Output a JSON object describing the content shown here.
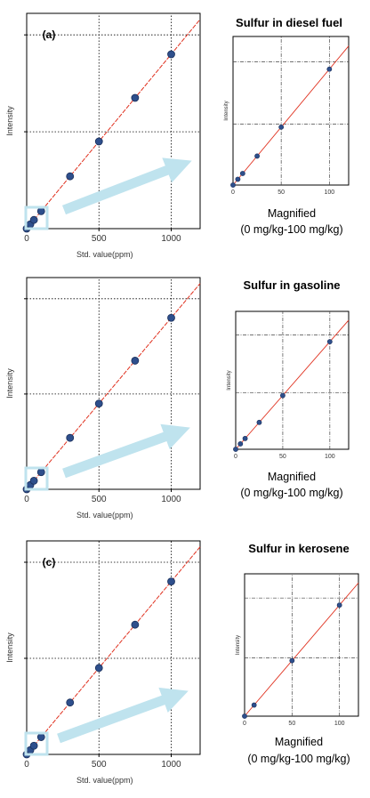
{
  "chart_data": [
    {
      "type": "scatter",
      "panel_label": "(a)",
      "title": "Sulfur in diesel fuel",
      "xlabel": "Std. value(ppm)",
      "ylabel": "Intensity",
      "x_ticks": [
        "0",
        "500",
        "1000"
      ],
      "xlim": [
        0,
        1200
      ],
      "points": [
        [
          0,
          0
        ],
        [
          10,
          0.01
        ],
        [
          25,
          0.025
        ],
        [
          50,
          0.05
        ],
        [
          100,
          0.1
        ],
        [
          300,
          0.3
        ],
        [
          500,
          0.5
        ],
        [
          750,
          0.75
        ],
        [
          1000,
          1.0
        ]
      ],
      "inset": {
        "x_ticks": [
          "0",
          "50",
          "100"
        ],
        "xlim": [
          0,
          120
        ],
        "ylabel": "Intensity",
        "points": [
          [
            0,
            0
          ],
          [
            5,
            0.005
          ],
          [
            10,
            0.01
          ],
          [
            25,
            0.025
          ],
          [
            50,
            0.05
          ],
          [
            100,
            0.1
          ]
        ],
        "caption_line1": "Magnified",
        "caption_line2": "(0 mg/kg-100 mg/kg)"
      }
    },
    {
      "type": "scatter",
      "panel_label": "",
      "title": "Sulfur in gasoline",
      "xlabel": "Std. value(ppm)",
      "ylabel": "Intensity",
      "x_ticks": [
        "0",
        "500",
        "1000"
      ],
      "xlim": [
        0,
        1200
      ],
      "points": [
        [
          0,
          0
        ],
        [
          10,
          0.01
        ],
        [
          25,
          0.025
        ],
        [
          50,
          0.05
        ],
        [
          100,
          0.1
        ],
        [
          300,
          0.3
        ],
        [
          500,
          0.5
        ],
        [
          750,
          0.75
        ],
        [
          1000,
          1.0
        ]
      ],
      "inset": {
        "x_ticks": [
          "0",
          "50",
          "100"
        ],
        "xlim": [
          0,
          120
        ],
        "ylabel": "Intensity",
        "points": [
          [
            0,
            0
          ],
          [
            5,
            0.005
          ],
          [
            10,
            0.01
          ],
          [
            25,
            0.025
          ],
          [
            50,
            0.05
          ],
          [
            100,
            0.1
          ]
        ],
        "caption_line1": "Magnified",
        "caption_line2": "(0 mg/kg-100 mg/kg)"
      }
    },
    {
      "type": "scatter",
      "panel_label": "(c)",
      "title": "Sulfur in kerosene",
      "xlabel": "Std. value(ppm)",
      "ylabel": "Intensity",
      "x_ticks": [
        "0",
        "500",
        "1000"
      ],
      "xlim": [
        0,
        1200
      ],
      "points": [
        [
          0,
          0
        ],
        [
          25,
          0.025
        ],
        [
          50,
          0.05
        ],
        [
          100,
          0.1
        ],
        [
          300,
          0.3
        ],
        [
          500,
          0.5
        ],
        [
          750,
          0.75
        ],
        [
          1000,
          1.0
        ]
      ],
      "inset": {
        "x_ticks": [
          "0",
          "50",
          "100"
        ],
        "xlim": [
          0,
          120
        ],
        "ylabel": "Intensity",
        "points": [
          [
            0,
            0
          ],
          [
            10,
            0.01
          ],
          [
            50,
            0.05
          ],
          [
            100,
            0.1
          ]
        ],
        "caption_line1": "Magnified",
        "caption_line2": "(0 mg/kg-100 mg/kg)"
      }
    }
  ],
  "colors": {
    "fit_line": "#e0301e",
    "marker": "#2e4f8c",
    "marker_edge": "#1a2f5a",
    "arrow": "#bfe3ee",
    "grid": "#000000"
  }
}
